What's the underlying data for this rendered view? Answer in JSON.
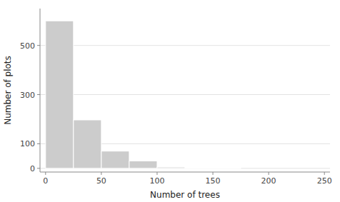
{
  "chart_data": {
    "type": "histogram",
    "xlabel": "Number of trees",
    "ylabel": "Number of plots",
    "bins": [
      0,
      25,
      50,
      75,
      100,
      125,
      150,
      175,
      200,
      225,
      250
    ],
    "values": [
      600,
      197,
      70,
      30,
      5,
      2,
      1,
      0,
      0,
      0
    ],
    "color": "#cccccc",
    "xlim": [
      -5,
      255
    ],
    "ylim": [
      -15,
      650
    ],
    "xticks": [
      0,
      50,
      100,
      150,
      200,
      250
    ],
    "yticks": [
      0,
      100,
      300,
      500
    ],
    "grid": true
  }
}
